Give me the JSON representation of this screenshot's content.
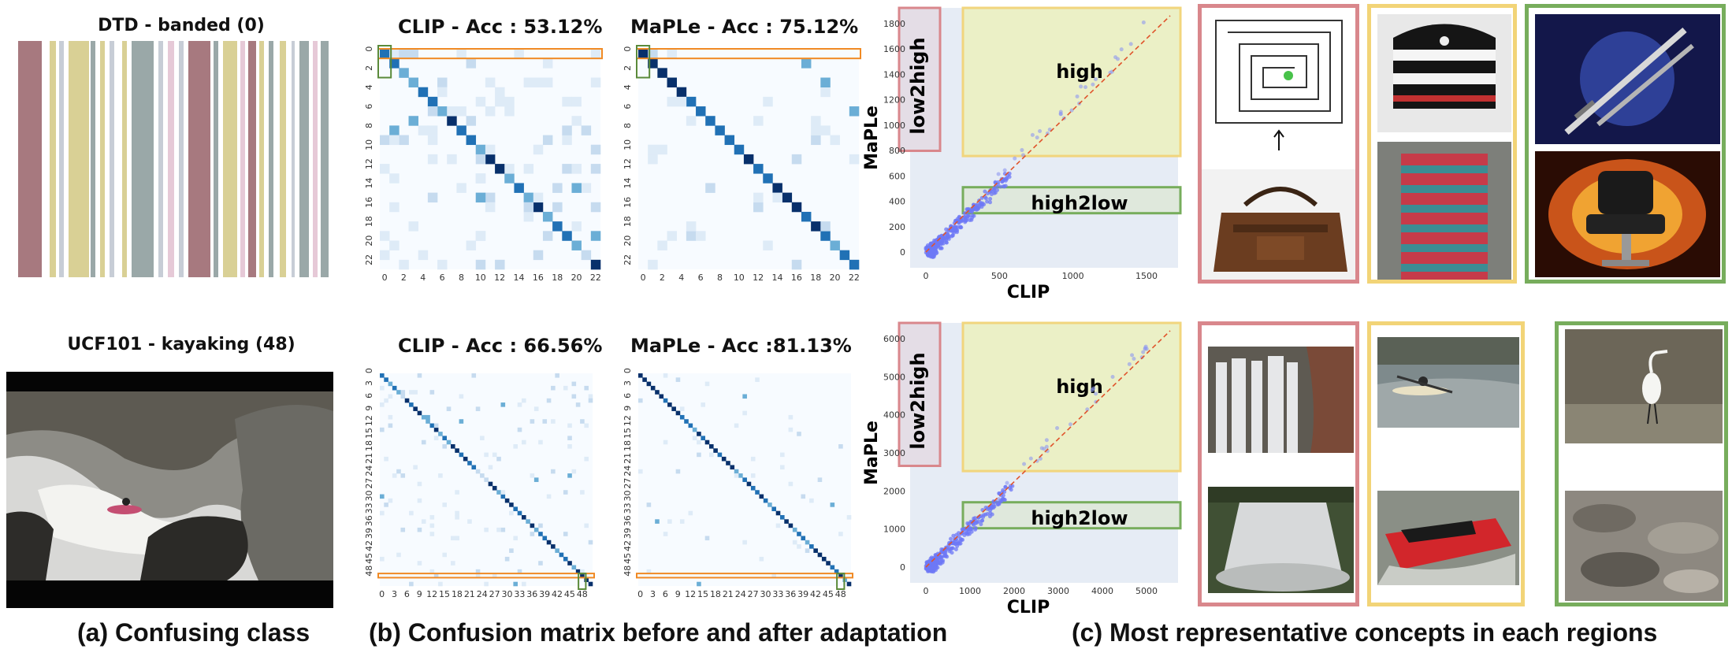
{
  "panel_a": {
    "top_title": "DTD - banded (0)",
    "bottom_title": "UCF101 - kayaking (48)",
    "caption": "(a) Confusing class",
    "stripe_colors": [
      "#a7797f",
      "#d9d095",
      "#9aa8a8",
      "#c7cdd6",
      "#e6c9d7"
    ]
  },
  "panel_b": {
    "caption": "(b) Confusion matrix before and after adaptation",
    "matrices": [
      {
        "title": "CLIP - Acc : 53.12%",
        "ticks": [
          "0",
          "2",
          "4",
          "6",
          "8",
          "10",
          "12",
          "14",
          "16",
          "18",
          "20",
          "22"
        ]
      },
      {
        "title": "MaPLe - Acc : 75.12%",
        "ticks": [
          "0",
          "2",
          "4",
          "6",
          "8",
          "10",
          "12",
          "14",
          "16",
          "18",
          "20",
          "22"
        ]
      },
      {
        "title": "CLIP - Acc : 66.56%",
        "ticks": [
          "0",
          "3",
          "6",
          "9",
          "12",
          "15",
          "18",
          "21",
          "24",
          "27",
          "30",
          "33",
          "36",
          "39",
          "42",
          "45",
          "48"
        ]
      },
      {
        "title": "MaPLe - Acc :81.13%",
        "ticks": [
          "0",
          "3",
          "6",
          "9",
          "12",
          "15",
          "18",
          "21",
          "24",
          "27",
          "30",
          "33",
          "36",
          "39",
          "42",
          "45",
          "48"
        ]
      }
    ]
  },
  "panel_c": {
    "caption": "(c)  Most representative concepts in each regions",
    "colors": {
      "low2high": "#d9878c",
      "high": "#f2d477",
      "high2low": "#77ad5c"
    },
    "scatters": [
      {
        "ylabel": "MaPLe",
        "xlabel": "CLIP",
        "regions": [
          "low2high",
          "high",
          "high2low"
        ],
        "yticks": [
          "0",
          "200",
          "400",
          "600",
          "800",
          "1000",
          "1200",
          "1400",
          "1600",
          "1800"
        ],
        "xticks": [
          "0",
          "500",
          "1000",
          "1500"
        ]
      },
      {
        "ylabel": "MaPLe",
        "xlabel": "CLIP",
        "regions": [
          "low2high",
          "high",
          "high2low"
        ],
        "yticks": [
          "0",
          "1000",
          "2000",
          "3000",
          "4000",
          "5000",
          "6000"
        ],
        "xticks": [
          "0",
          "1000",
          "2000",
          "3000",
          "4000",
          "5000"
        ]
      }
    ]
  }
}
